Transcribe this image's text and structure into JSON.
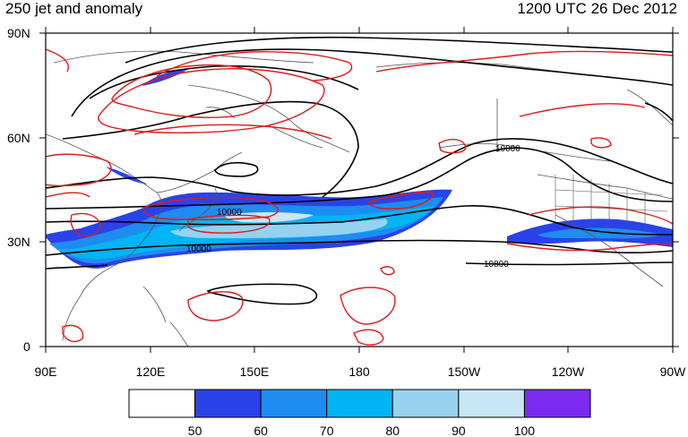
{
  "title": {
    "left": "250 jet and anomaly",
    "right": "1200 UTC 26 Dec 2012"
  },
  "axes": {
    "lat_labels": [
      "90N",
      "60N",
      "30N",
      "0"
    ],
    "lon_labels": [
      "90E",
      "120E",
      "150E",
      "180",
      "150W",
      "120W",
      "90W"
    ]
  },
  "contour_labels": [
    "10000",
    "10000",
    "10000",
    "10800"
  ],
  "colorbar": {
    "labels": [
      "50",
      "60",
      "70",
      "80",
      "90",
      "100"
    ],
    "colors": [
      "#ffffff",
      "#2a43e8",
      "#1e8cf0",
      "#00b4f5",
      "#96d2f0",
      "#c8e6f5",
      "#7b2bef"
    ]
  },
  "colors": {
    "jet_anomaly_contour": "#e01a1a",
    "height_contour": "#000000",
    "coastline": "#555555"
  }
}
